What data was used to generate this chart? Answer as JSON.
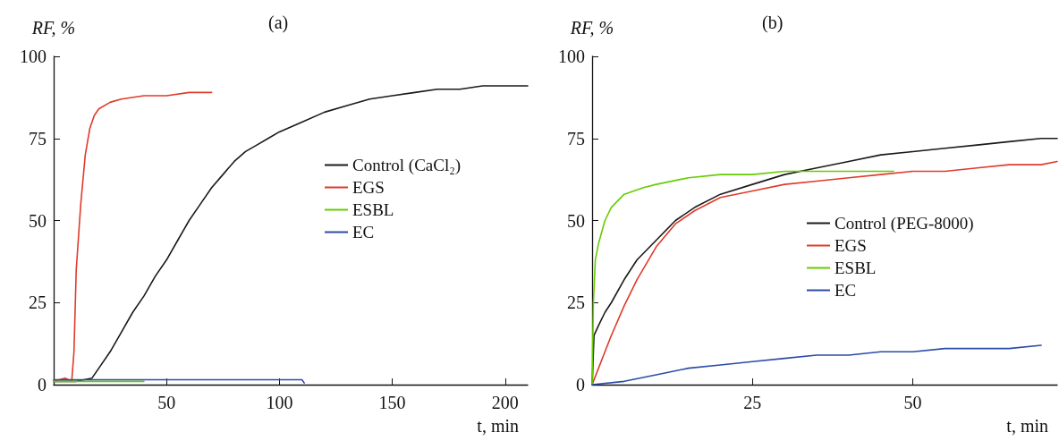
{
  "chart_data": [
    {
      "type": "line",
      "title": "(a)",
      "xlabel": "t, min",
      "ylabel": "RF, %",
      "xlim": [
        0,
        210
      ],
      "xticks": [
        50,
        100,
        150,
        200
      ],
      "ylim": [
        0,
        100
      ],
      "yticks": [
        0,
        25,
        50,
        75,
        100
      ],
      "grid": false,
      "legend": "center right",
      "marker": "none",
      "line_style": "solid",
      "series": [
        {
          "name": "Control (CaCl₂)",
          "color": "#1a1a1a",
          "x": [
            0,
            10,
            17,
            20,
            25,
            30,
            35,
            40,
            45,
            50,
            55,
            60,
            65,
            70,
            75,
            80,
            85,
            90,
            95,
            100,
            110,
            120,
            130,
            140,
            150,
            160,
            170,
            180,
            190,
            200,
            210
          ],
          "values": [
            1,
            1,
            2,
            5,
            10,
            16,
            22,
            27,
            33,
            38,
            44,
            50,
            55,
            60,
            64,
            68,
            71,
            73,
            75,
            77,
            80,
            83,
            85,
            87,
            88,
            89,
            90,
            90,
            91,
            91,
            91
          ]
        },
        {
          "name": "EGS",
          "color": "#e03a2a",
          "x": [
            0,
            5,
            8,
            9,
            10,
            12,
            14,
            16,
            18,
            20,
            25,
            30,
            40,
            50,
            60,
            70
          ],
          "values": [
            1,
            2,
            1,
            10,
            35,
            55,
            70,
            78,
            82,
            84,
            86,
            87,
            88,
            88,
            89,
            89
          ]
        },
        {
          "name": "ESBL",
          "color": "#66cc00",
          "x": [
            0,
            10,
            20,
            30,
            40
          ],
          "values": [
            1,
            1,
            1,
            1,
            1
          ]
        },
        {
          "name": "EC",
          "color": "#2b4ba8",
          "x": [
            0,
            20,
            40,
            60,
            80,
            100,
            110,
            111
          ],
          "values": [
            1.5,
            1.5,
            1.5,
            1.5,
            1.5,
            1.5,
            1.5,
            0.5
          ]
        }
      ]
    },
    {
      "type": "line",
      "title": "(b)",
      "xlabel": "t, min",
      "ylabel": "RF, %",
      "xlim": [
        0,
        72.5
      ],
      "xticks": [
        25,
        50
      ],
      "ylim": [
        0,
        100
      ],
      "yticks": [
        0,
        25,
        50,
        75,
        100
      ],
      "grid": false,
      "legend": "center right",
      "marker": "none",
      "line_style": "solid",
      "series": [
        {
          "name": "Control (PEG-8000)",
          "color": "#1a1a1a",
          "x": [
            0,
            0.3,
            1,
            2,
            3,
            5,
            7,
            10,
            13,
            16,
            20,
            25,
            30,
            35,
            40,
            45,
            50,
            55,
            60,
            65,
            70,
            72.5
          ],
          "values": [
            0,
            15,
            18,
            22,
            25,
            32,
            38,
            44,
            50,
            54,
            58,
            61,
            64,
            66,
            68,
            70,
            71,
            72,
            73,
            74,
            75,
            75
          ]
        },
        {
          "name": "EGS",
          "color": "#e03a2a",
          "x": [
            0,
            1,
            2,
            3,
            5,
            7,
            10,
            13,
            16,
            20,
            25,
            30,
            35,
            40,
            45,
            50,
            55,
            60,
            65,
            70,
            72.5
          ],
          "values": [
            0,
            5,
            10,
            15,
            24,
            32,
            42,
            49,
            53,
            57,
            59,
            61,
            62,
            63,
            64,
            65,
            65,
            66,
            67,
            67,
            68
          ]
        },
        {
          "name": "ESBL",
          "color": "#66cc00",
          "x": [
            0,
            0.2,
            0.5,
            1,
            2,
            3,
            5,
            8,
            10,
            15,
            20,
            25,
            30,
            35,
            40,
            47
          ],
          "values": [
            0,
            25,
            38,
            43,
            50,
            54,
            58,
            60,
            61,
            63,
            64,
            64,
            65,
            65,
            65,
            65
          ]
        },
        {
          "name": "EC",
          "color": "#2b4ba8",
          "x": [
            0,
            5,
            10,
            15,
            20,
            25,
            30,
            35,
            40,
            45,
            50,
            55,
            60,
            65,
            70
          ],
          "values": [
            0,
            1,
            3,
            5,
            6,
            7,
            8,
            9,
            9,
            10,
            10,
            11,
            11,
            11,
            12
          ]
        }
      ]
    }
  ]
}
